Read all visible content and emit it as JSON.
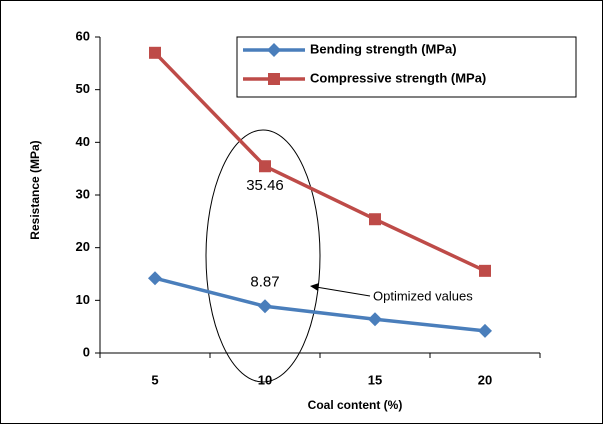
{
  "chart_data": {
    "type": "line",
    "x_label": "Coal content (%)",
    "y_label": "Resistance (MPa)",
    "categories": [
      "5",
      "10",
      "15",
      "20"
    ],
    "series": [
      {
        "name": "Bending strength (MPa)",
        "color": "#4a7ebb",
        "marker": "diamond",
        "values": [
          14.2,
          8.87,
          6.4,
          4.2
        ]
      },
      {
        "name": "Compressive strength (MPa)",
        "color": "#be4b48",
        "marker": "square",
        "values": [
          57,
          35.46,
          25.4,
          15.6
        ]
      }
    ],
    "ylim": [
      0,
      60
    ],
    "yticks": [
      0,
      10,
      20,
      30,
      40,
      50,
      60
    ],
    "grid": false,
    "legend": "top-right",
    "data_labels": [
      {
        "series": 1,
        "index": 1
      },
      {
        "series": 0,
        "index": 1
      }
    ],
    "annotation": "Optimized values"
  }
}
